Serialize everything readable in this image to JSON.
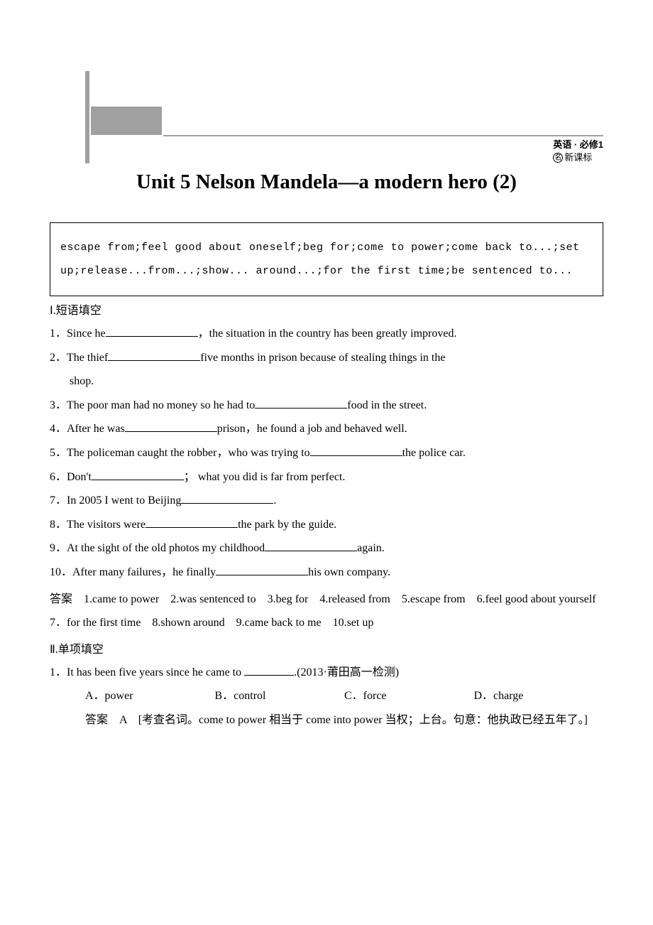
{
  "header": {
    "subject": "英语 · 必修1",
    "standard_icon": "名",
    "standard": "新课标"
  },
  "title": "Unit 5 Nelson Mandela—a modern hero (2)",
  "vocab_box": "escape from;feel good about oneself;beg for;come to power;come back to...;set up;release...from...;show... around...;for the first time;be sentenced to...",
  "section1": {
    "label": "Ⅰ.短语填空",
    "q1_a": "1．Since he",
    "q1_b": "，the situation in the country has been greatly improved.",
    "q2_a": "2．The thief",
    "q2_b": "five months in prison because of stealing things in the",
    "q2_c": "shop.",
    "q3_a": "3．The poor man had no money so he had to",
    "q3_b": "food in the street.",
    "q4_a": "4．After he was",
    "q4_b": "prison，he found a job and behaved well.",
    "q5_a": "5．The policeman caught the robber，who was trying to",
    "q5_b": "the police car.",
    "q6_a": "6．Don't",
    "q6_b": "； what you did is far from perfect.",
    "q7_a": "7．In 2005 I went to Beijing",
    "q7_b": ".",
    "q8_a": "8．The visitors were",
    "q8_b": "the park by the guide.",
    "q9_a": "9．At the sight of the old photos my childhood",
    "q9_b": "again.",
    "q10_a": "10．After many failures，he finally",
    "q10_b": "his own company.",
    "answers_label": "答案",
    "answers_text": "　1.came to power　2.was sentenced to　3.beg for　4.released from　5.escape from　6.feel good about yourself　7．for the first time　8.shown around　9.came back to me　10.set up"
  },
  "section2": {
    "label": "Ⅱ.单项填空",
    "q1_a": "1．It has been five years since he came to ",
    "q1_b": ".(2013·莆田高一检测)",
    "q1_opt_a": "A．power",
    "q1_opt_b": "B．control",
    "q1_opt_c": "C．force",
    "q1_opt_d": "D．charge",
    "q1_ans_label": "答案",
    "q1_ans": "　A　[考查名词。come to power 相当于 come into power 当权；上台。句意：他执政已经五年了。]"
  }
}
